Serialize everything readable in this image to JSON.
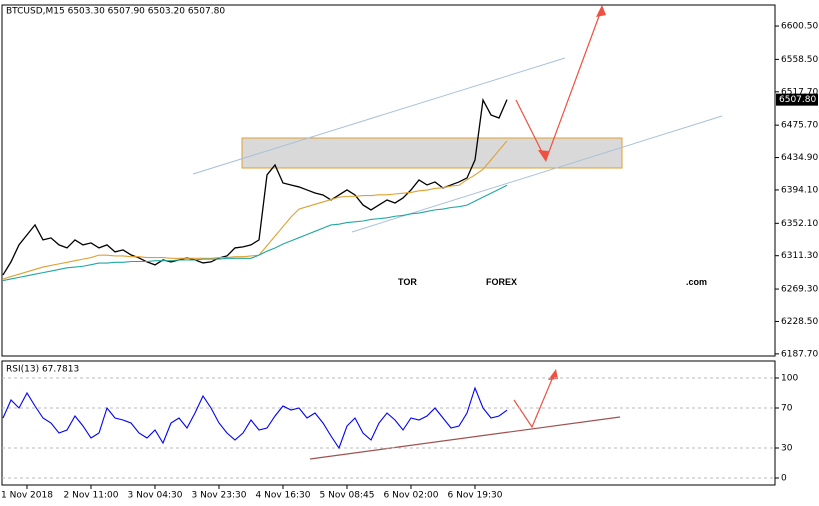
{
  "chart_data": [
    {
      "type": "line",
      "title": "BTCUSD,M15  6503.30 6507.90 6503.20 6507.80",
      "ylim": [
        6185,
        6627
      ],
      "yticks": [
        {
          "value": 6187.7,
          "label": "6187.70"
        },
        {
          "value": 6228.5,
          "label": "6228.50"
        },
        {
          "value": 6269.3,
          "label": "6269.30"
        },
        {
          "value": 6311.3,
          "label": "6311.30"
        },
        {
          "value": 6352.1,
          "label": "6352.10"
        },
        {
          "value": 6394.1,
          "label": "6394.10"
        },
        {
          "value": 6434.9,
          "label": "6434.90"
        },
        {
          "value": 6475.7,
          "label": "6475.70"
        },
        {
          "value": 6517.7,
          "label": "6517.70"
        },
        {
          "value": 6558.5,
          "label": "6558.50"
        },
        {
          "value": 6600.5,
          "label": "6600.50"
        }
      ],
      "price_marker": {
        "value": 6507.8,
        "label": "6507.80"
      },
      "watermark": [
        "TOR",
        "FOREX",
        ".com"
      ],
      "series": [
        {
          "color": "#000000",
          "values": [
            6287.1,
            6303.5,
            6324.9,
            6337.5,
            6350.1,
            6331.2,
            6333.7,
            6324.9,
            6321.1,
            6331.2,
            6324.9,
            6327.4,
            6321.1,
            6324.9,
            6316.1,
            6318.6,
            6312.3,
            6308.5,
            6303.5,
            6299.7,
            6306.0,
            6303.5,
            6306.0,
            6308.5,
            6306.0,
            6302.2,
            6303.5,
            6308.5,
            6311.0,
            6321.1,
            6322.4,
            6324.9,
            6331.2,
            6413.0,
            6425.6,
            6402.9,
            6400.4,
            6397.9,
            6394.1,
            6390.3,
            6387.8,
            6381.5,
            6387.8,
            6394.1,
            6387.8,
            6375.2,
            6368.9,
            6375.2,
            6381.5,
            6377.7,
            6384.0,
            6394.1,
            6406.7,
            6400.4,
            6404.2,
            6396.6,
            6400.4,
            6404.2,
            6409.2,
            6431.9,
            6507.4,
            6488.5,
            6484.7,
            6507.8
          ]
        },
        {
          "color": "#e0a030",
          "values": [
            6282,
            6285,
            6288,
            6291,
            6294,
            6297,
            6299,
            6301,
            6303,
            6305,
            6307,
            6309,
            6312,
            6312,
            6311,
            6311,
            6310,
            6310,
            6309,
            6309,
            6309,
            6308,
            6308,
            6308,
            6308,
            6308,
            6308,
            6309,
            6309,
            6310,
            6310,
            6311,
            6312,
            6324,
            6336,
            6348,
            6360,
            6370,
            6373,
            6376,
            6379,
            6382,
            6385,
            6386,
            6386,
            6387,
            6387,
            6388,
            6388,
            6389,
            6390,
            6391,
            6393,
            6394,
            6396,
            6397,
            6399,
            6400,
            6407,
            6413,
            6420,
            6432,
            6444,
            6456
          ]
        },
        {
          "color": "#20a8a0",
          "values": [
            6280,
            6282,
            6284,
            6286,
            6288,
            6290,
            6292,
            6294,
            6296,
            6297,
            6298,
            6300,
            6302,
            6302,
            6303,
            6303,
            6304,
            6304,
            6304,
            6305,
            6305,
            6305,
            6306,
            6306,
            6306,
            6307,
            6307,
            6307,
            6308,
            6308,
            6308,
            6308,
            6312,
            6317,
            6321,
            6326,
            6330,
            6334,
            6338,
            6342,
            6346,
            6350,
            6351,
            6353,
            6354,
            6355,
            6357,
            6358,
            6359,
            6361,
            6362,
            6364,
            6365,
            6367,
            6369,
            6370,
            6372,
            6373,
            6375,
            6380,
            6385,
            6390,
            6395,
            6400
          ]
        }
      ]
    },
    {
      "type": "line",
      "title": "RSI(13) 67.7813",
      "ylim": [
        -7,
        117
      ],
      "yticks": [
        0,
        30,
        70,
        100
      ],
      "categories": [
        null,
        null,
        null,
        "1 Nov 2018",
        null,
        null,
        null,
        null,
        null,
        null,
        null,
        "2 Nov 11:00",
        null,
        null,
        null,
        null,
        null,
        null,
        null,
        "3 Nov 04:30",
        null,
        null,
        null,
        null,
        null,
        null,
        null,
        "3 Nov 23:30",
        null,
        null,
        null,
        null,
        null,
        null,
        null,
        "4 Nov 16:30",
        null,
        null,
        null,
        null,
        null,
        null,
        null,
        "5 Nov 08:45",
        null,
        null,
        null,
        null,
        null,
        null,
        null,
        "6 Nov 02:00",
        null,
        null,
        null,
        null,
        null,
        null,
        null,
        "6 Nov 19:30",
        null,
        null,
        null,
        null
      ],
      "series": [
        {
          "color": "#0000ff",
          "values": [
            60,
            78,
            70,
            85,
            72,
            60,
            55,
            45,
            48,
            62,
            52,
            40,
            45,
            70,
            60,
            58,
            55,
            45,
            40,
            48,
            35,
            55,
            60,
            50,
            65,
            82,
            70,
            55,
            45,
            38,
            45,
            58,
            48,
            50,
            62,
            72,
            68,
            70,
            60,
            65,
            55,
            42,
            30,
            52,
            60,
            45,
            38,
            55,
            65,
            58,
            48,
            60,
            58,
            62,
            70,
            60,
            50,
            52,
            65,
            90,
            70,
            60,
            62,
            67.78
          ]
        }
      ]
    }
  ]
}
